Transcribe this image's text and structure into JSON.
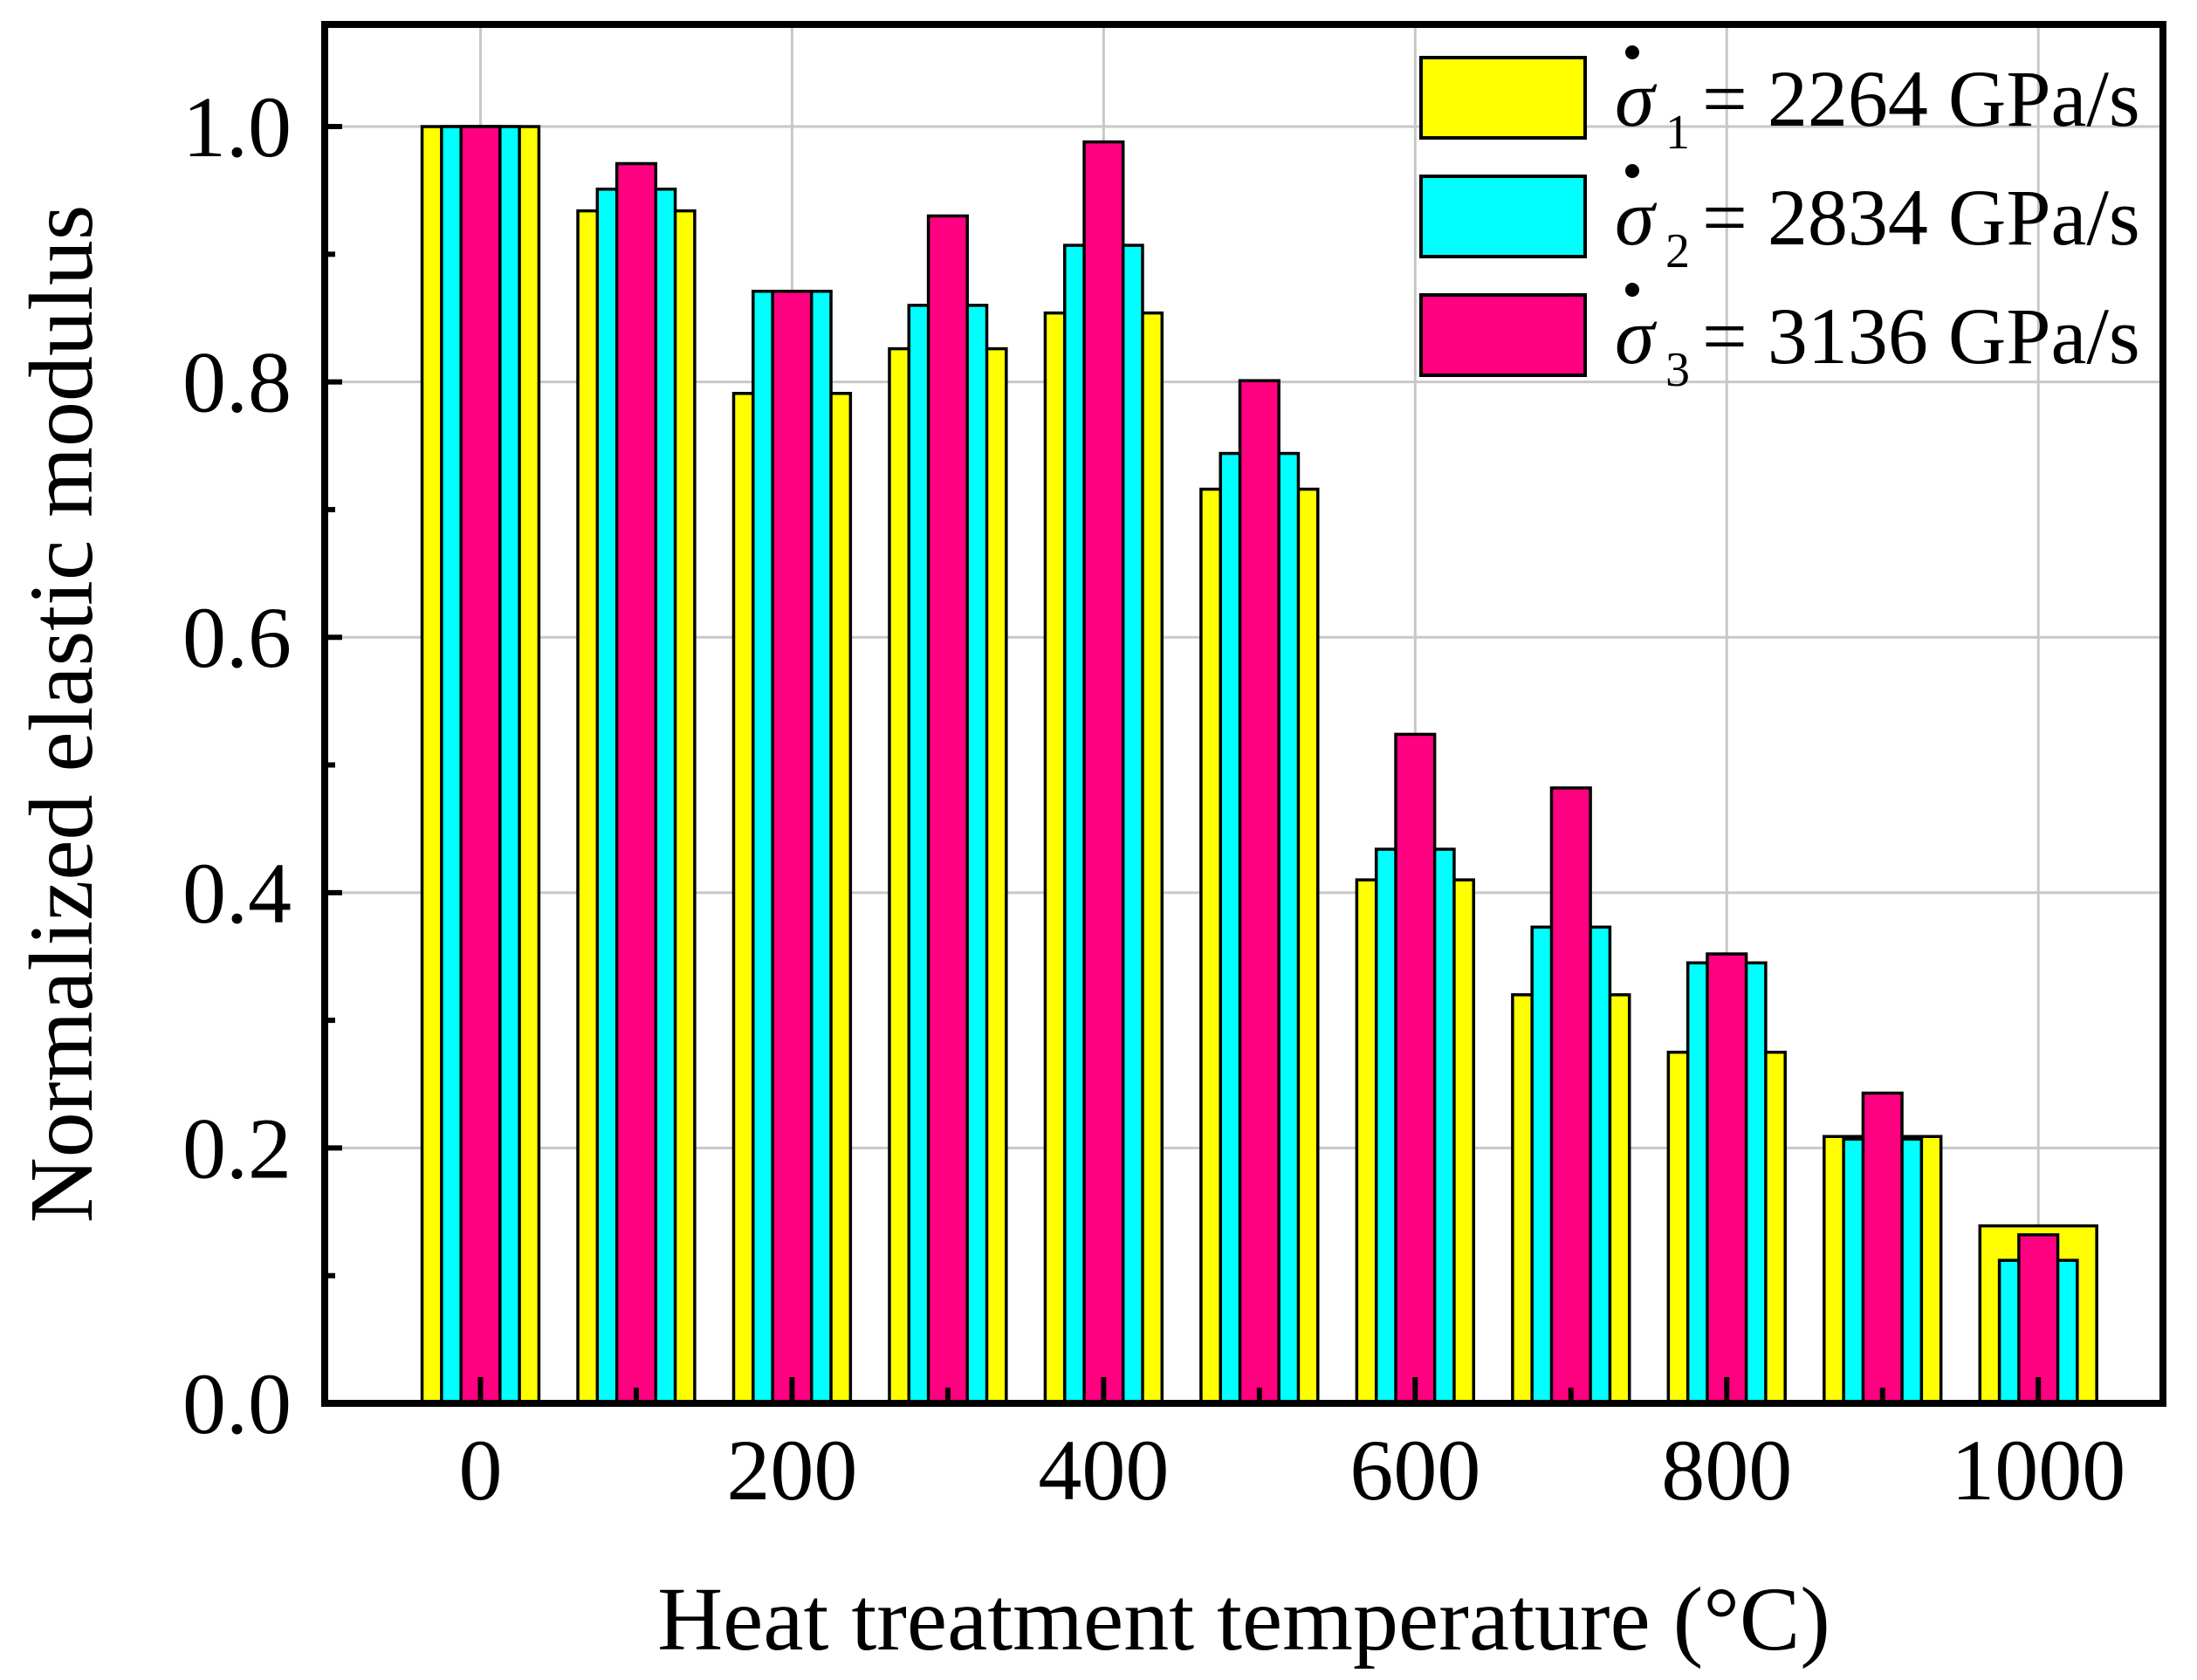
{
  "chart_data": {
    "type": "bar",
    "xlabel": "Heat treatment temperature (°C)",
    "ylabel": "Normalized elastic modulus",
    "xlim": [
      -100,
      1080
    ],
    "ylim": [
      0.0,
      1.08
    ],
    "grid": true,
    "x_ticks": [
      0,
      200,
      400,
      600,
      800,
      1000
    ],
    "x_tick_labels": [
      "0",
      "200",
      "400",
      "600",
      "800",
      "1000"
    ],
    "y_ticks": [
      0.0,
      0.2,
      0.4,
      0.6,
      0.8,
      1.0
    ],
    "y_tick_labels": [
      "0.0",
      "0.2",
      "0.4",
      "0.6",
      "0.8",
      "1.0"
    ],
    "categories": [
      0,
      100,
      200,
      300,
      400,
      500,
      600,
      700,
      800,
      900,
      1000
    ],
    "bar_width_data_units": [
      75,
      50,
      25
    ],
    "legend_position": "top-right",
    "series": [
      {
        "name": "σ̇₁ = 2264 GPa/s",
        "symbol": "σ",
        "subscript": "1",
        "rate_label": "= 2264 GPa/s",
        "color": "#ffff00",
        "values": [
          1.0,
          0.934,
          0.791,
          0.826,
          0.854,
          0.716,
          0.41,
          0.32,
          0.275,
          0.209,
          0.139
        ]
      },
      {
        "name": "σ̇₂ = 2834 GPa/s",
        "symbol": "σ",
        "subscript": "2",
        "rate_label": "= 2834 GPa/s",
        "color": "#00ffff",
        "values": [
          1.0,
          0.951,
          0.871,
          0.86,
          0.907,
          0.744,
          0.434,
          0.373,
          0.345,
          0.207,
          0.112
        ]
      },
      {
        "name": "σ̇₃ = 3136 GPa/s",
        "symbol": "σ",
        "subscript": "3",
        "rate_label": "= 3136 GPa/s",
        "color": "#ff0080",
        "values": [
          1.0,
          0.971,
          0.871,
          0.93,
          0.988,
          0.801,
          0.524,
          0.482,
          0.352,
          0.243,
          0.132
        ]
      }
    ]
  }
}
